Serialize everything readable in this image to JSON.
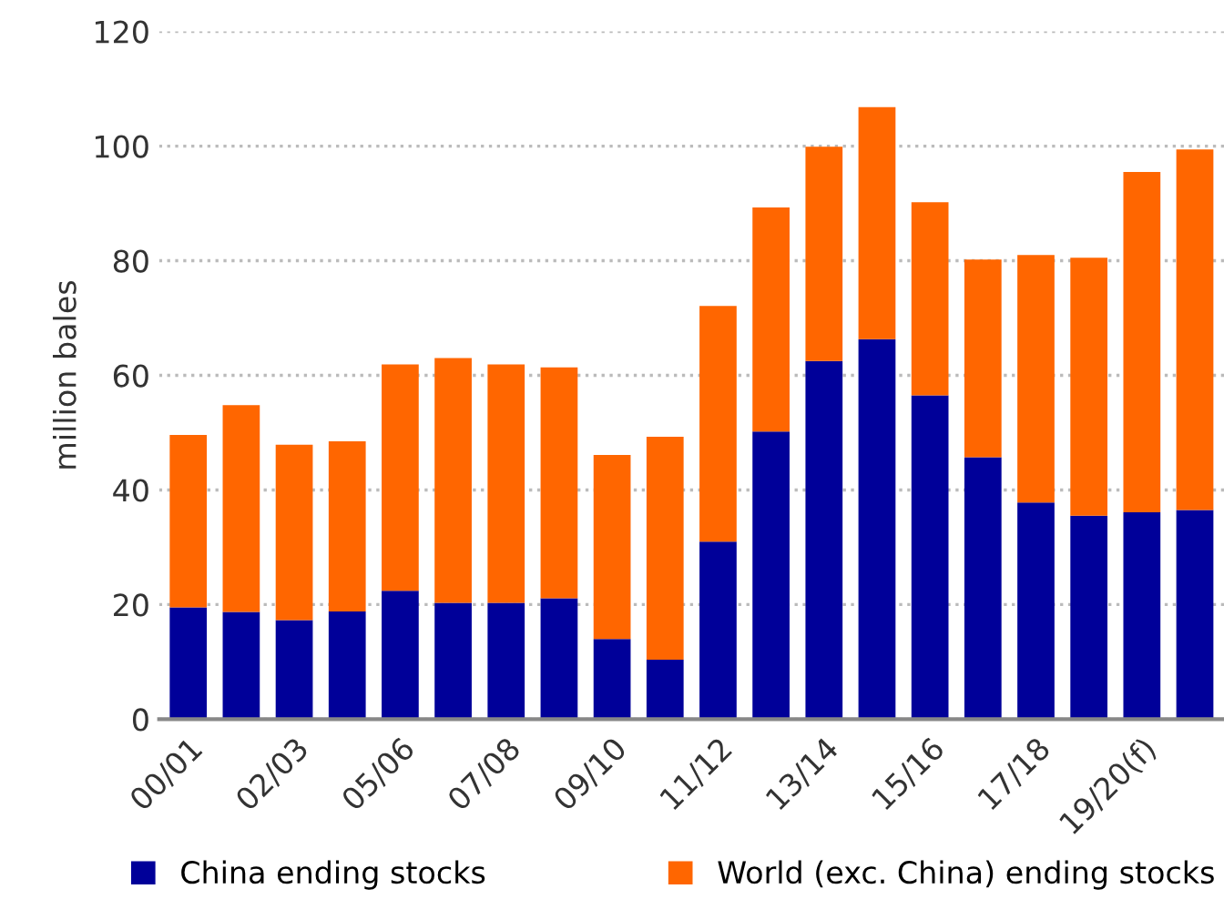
{
  "chart_data": {
    "type": "bar",
    "stacked": true,
    "ylabel": "million bales",
    "categories": [
      "00/01",
      null,
      "02/03",
      null,
      "05/06",
      null,
      "07/08",
      null,
      "09/10",
      null,
      "11/12",
      null,
      "13/14",
      null,
      "15/16",
      null,
      "17/18",
      null,
      "19/20(f)",
      null
    ],
    "series": [
      {
        "name": "China ending stocks",
        "color": "#000099",
        "values": [
          19.5,
          18.7,
          17.3,
          18.8,
          22.4,
          20.3,
          20.3,
          21.1,
          14.0,
          10.4,
          31.0,
          50.2,
          62.5,
          66.3,
          56.5,
          45.7,
          37.8,
          35.5,
          36.1,
          36.5
        ]
      },
      {
        "name": "World (exc. China) ending stocks",
        "color": "#ff6600",
        "values": [
          30.1,
          36.1,
          30.6,
          29.7,
          39.5,
          42.7,
          41.6,
          40.3,
          32.1,
          38.9,
          41.1,
          39.1,
          37.4,
          40.5,
          33.7,
          34.5,
          43.2,
          45.0,
          59.4,
          62.9
        ]
      }
    ],
    "ylim": [
      0,
      120
    ],
    "yticks": [
      0,
      20,
      40,
      60,
      80,
      100,
      120
    ],
    "grid": "y",
    "legend": "bottom"
  }
}
